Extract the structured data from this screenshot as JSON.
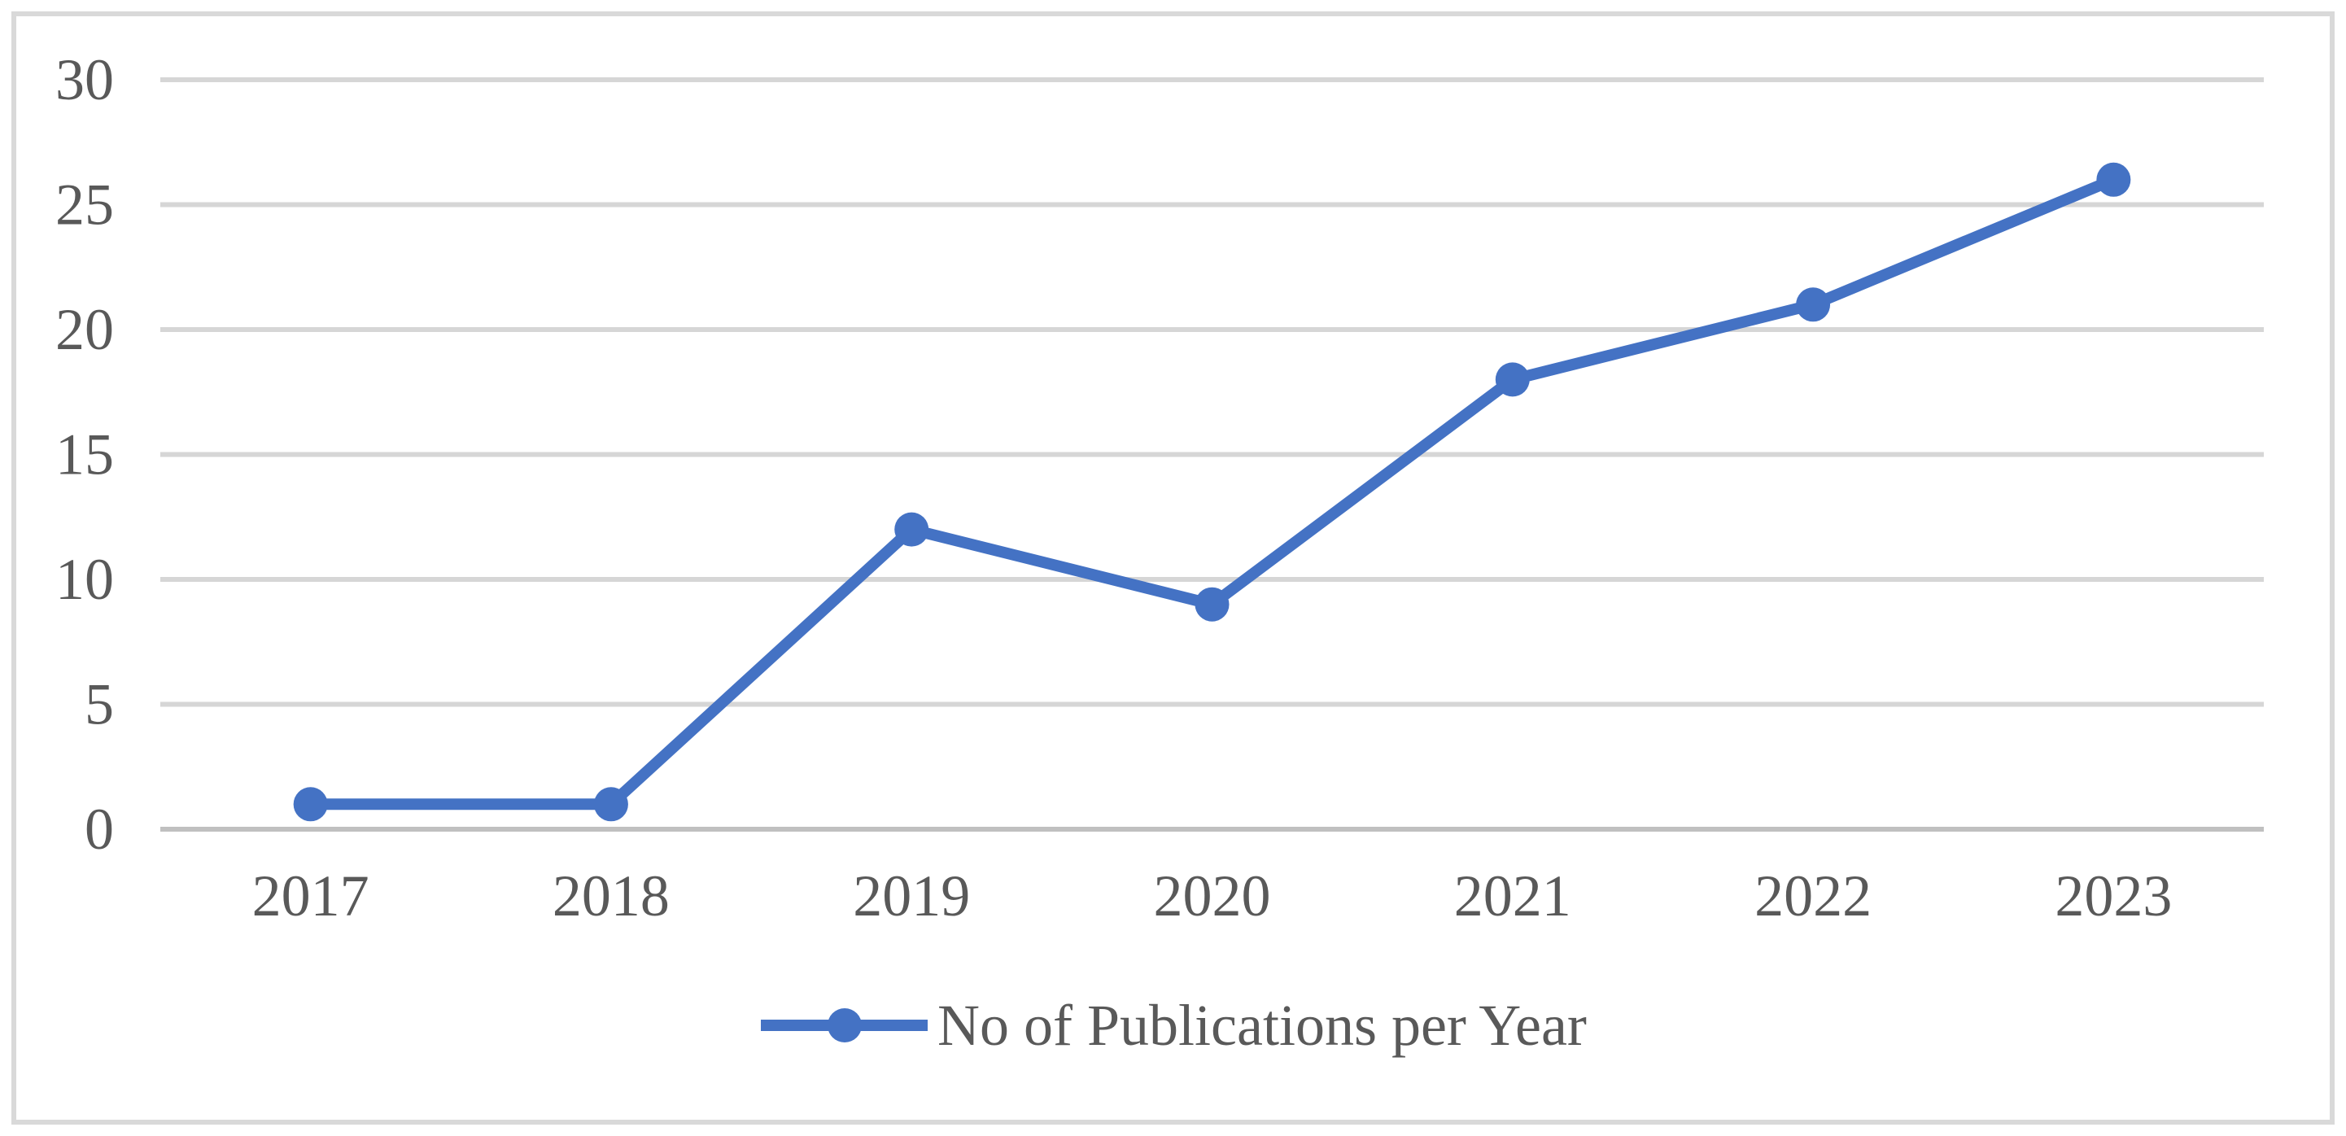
{
  "chart_data": {
    "type": "line",
    "title": "",
    "xlabel": "",
    "ylabel": "",
    "categories": [
      "2017",
      "2018",
      "2019",
      "2020",
      "2021",
      "2022",
      "2023"
    ],
    "series": [
      {
        "name": "No of Publications per Year",
        "values": [
          1,
          1,
          12,
          9,
          18,
          21,
          26
        ]
      }
    ],
    "ylim": [
      0,
      30
    ],
    "yticks": [
      0,
      5,
      10,
      15,
      20,
      25,
      30
    ],
    "grid": true,
    "legend_position": "bottom-center",
    "legend": {
      "label": "No of Publications per Year",
      "marker": "circle-on-line"
    },
    "colors": {
      "series": "#4472C4",
      "gridline": "#D6D6D6",
      "axis_line": "#C0C0C0",
      "tick_label": "#595959",
      "legend_label": "#595959",
      "frame_border": "#D9D9D9",
      "background": "#FFFFFF"
    }
  }
}
